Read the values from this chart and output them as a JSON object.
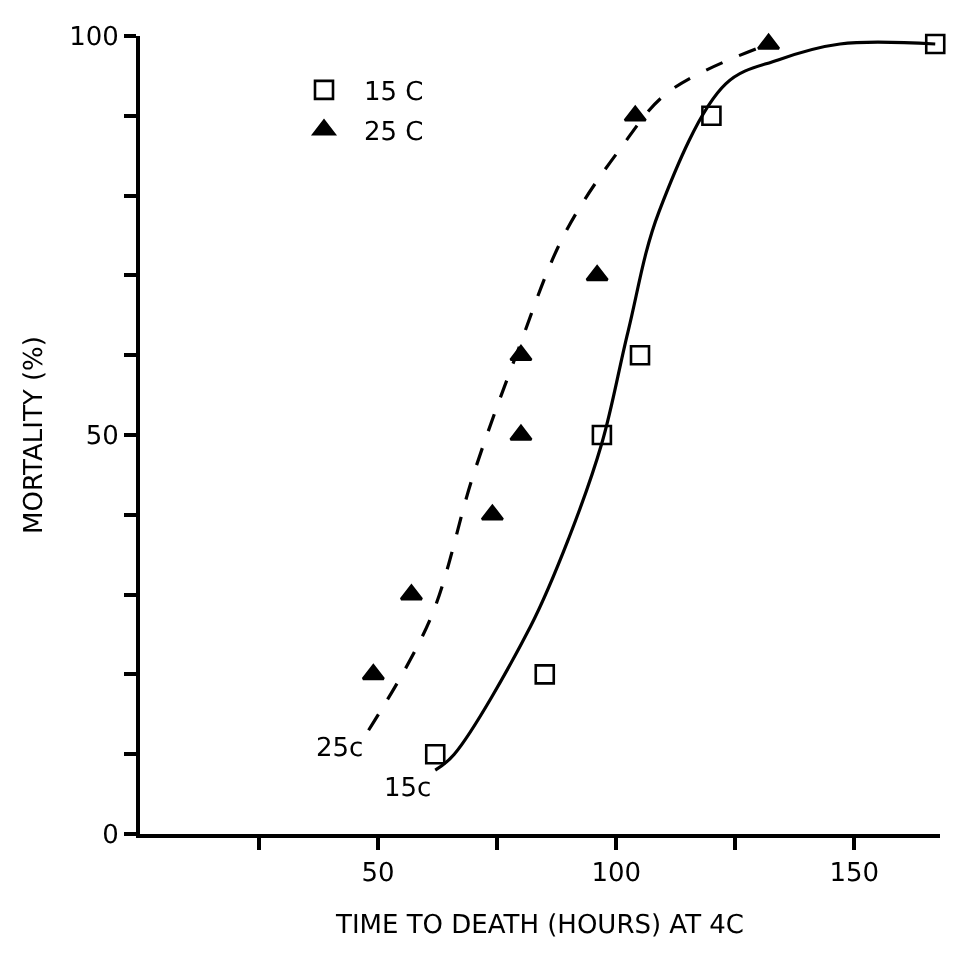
{
  "chart_data": {
    "type": "scatter",
    "xlabel": "TIME TO DEATH (HOURS) AT 4C",
    "ylabel": "MORTALITY (%)",
    "xlim": [
      0,
      168
    ],
    "ylim": [
      0,
      100
    ],
    "xticks": [
      {
        "value": 25,
        "label": null
      },
      50,
      {
        "value": 75,
        "label": null
      },
      100,
      {
        "value": 125,
        "label": null
      },
      150
    ],
    "yticks": [
      0,
      {
        "value": 10,
        "label": null
      },
      {
        "value": 20,
        "label": null
      },
      {
        "value": 30,
        "label": null
      },
      {
        "value": 40,
        "label": null
      },
      50,
      {
        "value": 60,
        "label": null
      },
      {
        "value": 70,
        "label": null
      },
      {
        "value": 80,
        "label": null
      },
      {
        "value": 90,
        "label": null
      },
      100
    ],
    "legend": "top left",
    "series": [
      {
        "name": "15 C",
        "marker": "square",
        "color": "#000000",
        "x": [
          62,
          85,
          97,
          105,
          120,
          167
        ],
        "values": [
          10,
          20,
          50,
          60,
          90,
          99
        ]
      },
      {
        "name": "25 C",
        "marker": "triangle",
        "color": "#000000",
        "x": [
          49,
          57,
          74,
          80,
          80,
          96,
          104,
          132
        ],
        "values": [
          20,
          30,
          40,
          50,
          60,
          70,
          90,
          99
        ]
      },
      {
        "type": "line",
        "line_style": "solid",
        "marker": "none",
        "color": "#000000",
        "x": [
          62,
          66,
          82,
          90,
          97,
          102.5,
          109,
          123,
          134,
          147,
          167
        ],
        "values": [
          8,
          10,
          26,
          37,
          49,
          63,
          78,
          94,
          97,
          99,
          99
        ]
      },
      {
        "type": "line",
        "line_style": "dashed",
        "marker": "none",
        "color": "#000000",
        "x": [
          48,
          61,
          70,
          79,
          89,
          101,
          111,
          132
        ],
        "values": [
          13,
          27,
          45,
          60,
          75,
          86,
          93,
          99
        ]
      }
    ],
    "annotations": [
      {
        "text": "25c",
        "x": 48,
        "y": 13
      },
      {
        "text": "15c",
        "x": 62,
        "y": 8
      }
    ]
  }
}
